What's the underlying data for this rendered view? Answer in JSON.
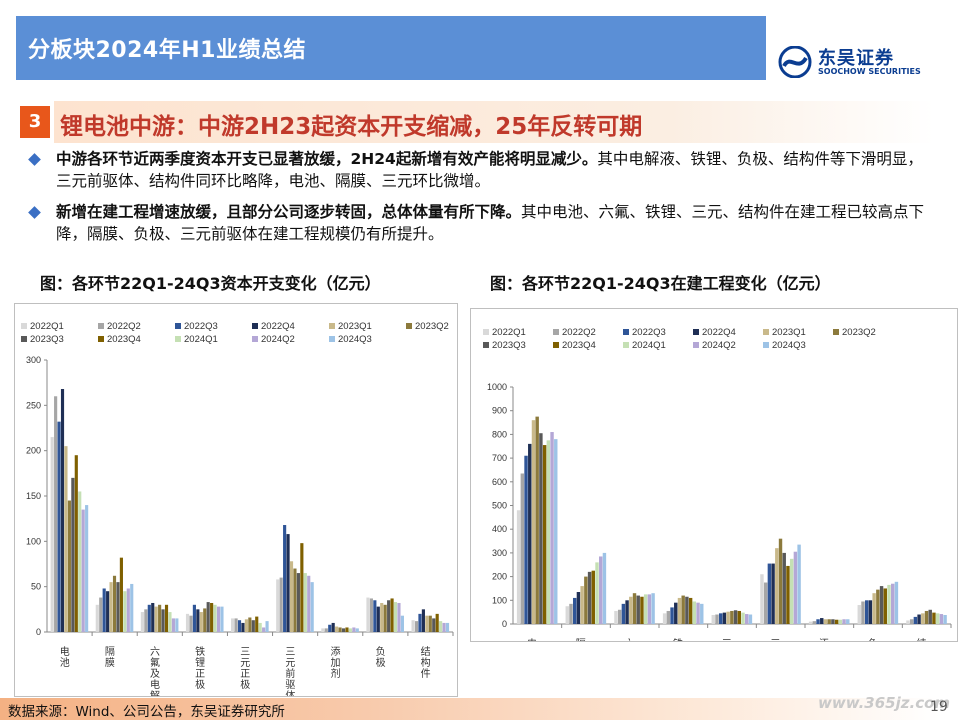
{
  "header": {
    "title": "分板块2024年H1业绩总结"
  },
  "logo": {
    "cn": "东吴证券",
    "en": "SOOCHOW SECURITIES"
  },
  "section": {
    "number": "3",
    "title": "锂电池中游：中游2H23起资本开支缩减，25年反转可期"
  },
  "bullets": [
    {
      "bold": "中游各环节近两季度资本开支已显著放缓，2H24起新增有效产能将明显减少。",
      "normal": "其中电解液、铁锂、负极、结构件等下滑明显， 三元前驱体、结构件同环比略降，电池、隔膜、三元环比微增。"
    },
    {
      "bold": "新增在建工程增速放缓，且部分公司逐步转固，总体体量有所下降。",
      "normal": "其中电池、六氟、铁锂、三元、结构件在建工程已较高点下降，隔膜、负极、三元前驱体在建工程规模仍有所提升。"
    }
  ],
  "figures": {
    "left_caption": "图：各环节22Q1-24Q3资本开支变化（亿元）",
    "right_caption": "图：各环节22Q1-24Q3在建工程变化（亿元）"
  },
  "footer": {
    "source": "数据来源：Wind、公司公告，东吴证券研究所",
    "page": "19",
    "watermark": "www.365jz.com"
  },
  "chart_data": [
    {
      "type": "bar",
      "categories": [
        "电池",
        "隔膜",
        "六氟及电解液",
        "铁锂正极",
        "三元正极",
        "三元前驱体",
        "添加剂",
        "负极",
        "结构件"
      ],
      "series": [
        {
          "name": "2022Q1",
          "values": [
            215,
            30,
            22,
            20,
            15,
            58,
            4,
            38,
            13
          ],
          "color": "#d9d9d9"
        },
        {
          "name": "2022Q2",
          "values": [
            260,
            38,
            25,
            18,
            15,
            60,
            4,
            37,
            12
          ],
          "color": "#a6a6a6"
        },
        {
          "name": "2022Q3",
          "values": [
            232,
            48,
            30,
            30,
            13,
            118,
            8,
            35,
            20
          ],
          "color": "#2f5597"
        },
        {
          "name": "2022Q4",
          "values": [
            268,
            45,
            32,
            25,
            10,
            108,
            10,
            28,
            25
          ],
          "color": "#1f2f55"
        },
        {
          "name": "2023Q1",
          "values": [
            205,
            55,
            28,
            22,
            14,
            78,
            6,
            32,
            18
          ],
          "color": "#c9b98a"
        },
        {
          "name": "2023Q2",
          "values": [
            145,
            62,
            30,
            26,
            16,
            70,
            5,
            30,
            18
          ],
          "color": "#8c7a3c"
        },
        {
          "name": "2023Q3",
          "values": [
            170,
            55,
            25,
            33,
            13,
            65,
            4,
            35,
            15
          ],
          "color": "#595959"
        },
        {
          "name": "2023Q4",
          "values": [
            195,
            82,
            30,
            32,
            17,
            98,
            5,
            37,
            20
          ],
          "color": "#7f6000"
        },
        {
          "name": "2024Q1",
          "values": [
            155,
            45,
            22,
            30,
            10,
            65,
            4,
            33,
            12
          ],
          "color": "#c5e0b4"
        },
        {
          "name": "2024Q2",
          "values": [
            135,
            48,
            15,
            28,
            5,
            62,
            5,
            32,
            10
          ],
          "color": "#b4a7d6"
        },
        {
          "name": "2024Q3",
          "values": [
            140,
            53,
            15,
            28,
            12,
            55,
            4,
            18,
            10
          ],
          "color": "#9dc3e6"
        }
      ],
      "ylim": [
        0,
        300
      ],
      "yticks": [
        0,
        50,
        100,
        150,
        200,
        250,
        300
      ]
    },
    {
      "type": "bar",
      "categories": [
        "电池",
        "隔膜",
        "六氟及电解液",
        "铁锂正极",
        "三元正极",
        "三元前驱体",
        "添加剂",
        "负极",
        "结构件"
      ],
      "series": [
        {
          "name": "2022Q1",
          "values": [
            480,
            75,
            55,
            45,
            38,
            210,
            10,
            80,
            15
          ],
          "color": "#d9d9d9"
        },
        {
          "name": "2022Q2",
          "values": [
            635,
            85,
            60,
            55,
            40,
            175,
            12,
            95,
            20
          ],
          "color": "#a6a6a6"
        },
        {
          "name": "2022Q3",
          "values": [
            710,
            110,
            85,
            70,
            45,
            255,
            20,
            100,
            30
          ],
          "color": "#2f5597"
        },
        {
          "name": "2022Q4",
          "values": [
            760,
            135,
            100,
            90,
            48,
            255,
            25,
            100,
            40
          ],
          "color": "#1f2f55"
        },
        {
          "name": "2023Q1",
          "values": [
            860,
            160,
            115,
            110,
            52,
            320,
            20,
            130,
            45
          ],
          "color": "#c9b98a"
        },
        {
          "name": "2023Q2",
          "values": [
            875,
            200,
            130,
            120,
            55,
            360,
            20,
            145,
            55
          ],
          "color": "#8c7a3c"
        },
        {
          "name": "2023Q3",
          "values": [
            805,
            220,
            120,
            115,
            58,
            300,
            20,
            160,
            60
          ],
          "color": "#595959"
        },
        {
          "name": "2023Q4",
          "values": [
            755,
            225,
            115,
            110,
            55,
            245,
            18,
            150,
            48
          ],
          "color": "#7f6000"
        },
        {
          "name": "2024Q1",
          "values": [
            775,
            260,
            125,
            95,
            48,
            275,
            18,
            165,
            45
          ],
          "color": "#c5e0b4"
        },
        {
          "name": "2024Q2",
          "values": [
            810,
            285,
            125,
            90,
            42,
            305,
            20,
            170,
            42
          ],
          "color": "#b4a7d6"
        },
        {
          "name": "2024Q3",
          "values": [
            780,
            300,
            130,
            85,
            40,
            335,
            20,
            178,
            38
          ],
          "color": "#9dc3e6"
        }
      ],
      "ylim": [
        0,
        1000
      ],
      "yticks": [
        0,
        100,
        200,
        300,
        400,
        500,
        600,
        700,
        800,
        900,
        1000
      ]
    }
  ]
}
